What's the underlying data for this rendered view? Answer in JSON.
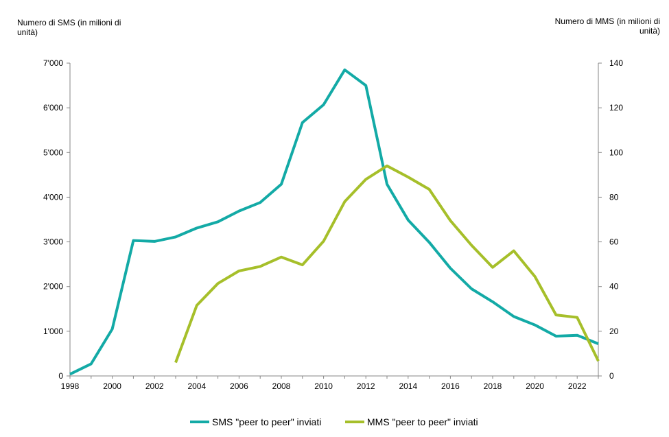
{
  "chart_data": {
    "type": "line",
    "ylabel_left": "Numero di SMS (in milioni di unità)",
    "ylabel_right": "Numero di MMS (in milioni di unità)",
    "x": [
      1998,
      1999,
      2000,
      2001,
      2002,
      2003,
      2004,
      2005,
      2006,
      2007,
      2008,
      2009,
      2010,
      2011,
      2012,
      2013,
      2014,
      2015,
      2016,
      2017,
      2018,
      2019,
      2020,
      2021,
      2022,
      2023
    ],
    "x_ticks": [
      "1998",
      "2000",
      "2002",
      "2004",
      "2006",
      "2008",
      "2010",
      "2012",
      "2014",
      "2016",
      "2018",
      "2020",
      "2022"
    ],
    "ylim_left": [
      0,
      7000
    ],
    "ylim_right": [
      0,
      140
    ],
    "y_ticks_left": [
      "0",
      "1'000",
      "2'000",
      "3'000",
      "4'000",
      "5'000",
      "6'000",
      "7'000"
    ],
    "y_ticks_right": [
      "0",
      "20",
      "40",
      "60",
      "80",
      "100",
      "120",
      "140"
    ],
    "series": [
      {
        "name": "SMS \"peer to peer\" inviati",
        "axis": "left",
        "color": "#13aaa6",
        "values": [
          40,
          270,
          1050,
          3030,
          3010,
          3110,
          3310,
          3450,
          3690,
          3880,
          4290,
          5670,
          6070,
          6850,
          6500,
          4290,
          3490,
          2990,
          2410,
          1950,
          1660,
          1330,
          1140,
          890,
          910,
          720
        ]
      },
      {
        "name": "MMS \"peer to peer\" inviati",
        "axis": "right",
        "color": "#a6bf2a",
        "values": [
          null,
          null,
          null,
          null,
          null,
          6,
          31.6,
          41.4,
          47,
          49,
          53.2,
          49.7,
          60.3,
          78,
          88,
          94,
          89,
          83.5,
          69.5,
          58.5,
          48.6,
          56,
          44.5,
          27.3,
          26.2,
          6.7
        ]
      }
    ],
    "grid": false,
    "legend_position": "bottom"
  }
}
